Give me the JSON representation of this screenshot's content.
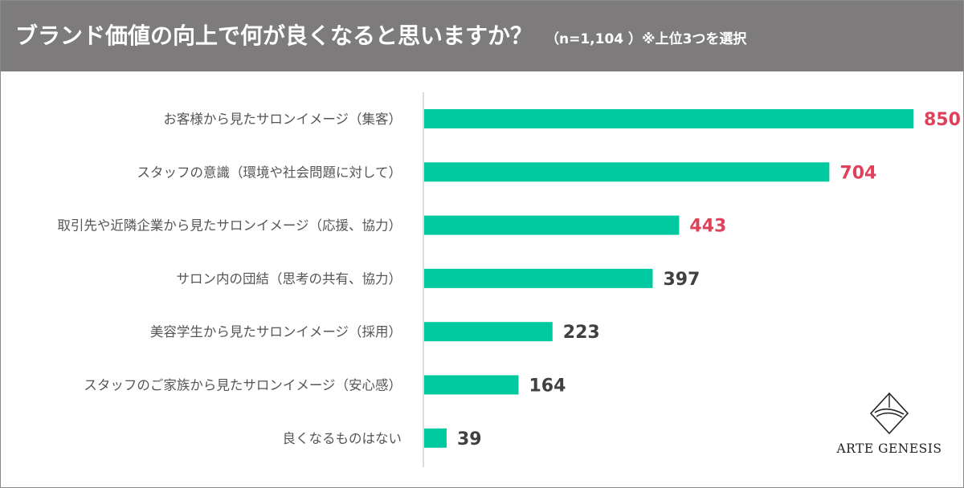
{
  "header": {
    "title": "ブランド価値の向上で何が良くなると思いますか？",
    "subtitle": "（n=1,104 ）※上位3つを選択",
    "background_color": "#7d7b7c"
  },
  "logo": {
    "text": "ARTE GENESIS",
    "icon": "arte-genesis-emblem-icon"
  },
  "chart_data": {
    "type": "bar",
    "orientation": "horizontal",
    "title": "ブランド価値の向上で何が良くなると思いますか？",
    "categories": [
      "お客様から見たサロンイメージ（集客）",
      "スタッフの意識（環境や社会問題に対して）",
      "取引先や近隣企業から見たサロンイメージ（応援、協力）",
      "サロン内の団結（思考の共有、協力）",
      "美容学生から見たサロンイメージ（採用）",
      "スタッフのご家族から見たサロンイメージ（安心感）",
      "良くなるものはない"
    ],
    "values": [
      850,
      704,
      443,
      397,
      223,
      164,
      39
    ],
    "value_label_colors": [
      "#e0415a",
      "#e0415a",
      "#e0415a",
      "#404040",
      "#404040",
      "#404040",
      "#404040"
    ],
    "bar_color": "#00c9a0",
    "xlim": [
      0,
      850
    ],
    "xlabel": "",
    "ylabel": "",
    "grid": false
  }
}
